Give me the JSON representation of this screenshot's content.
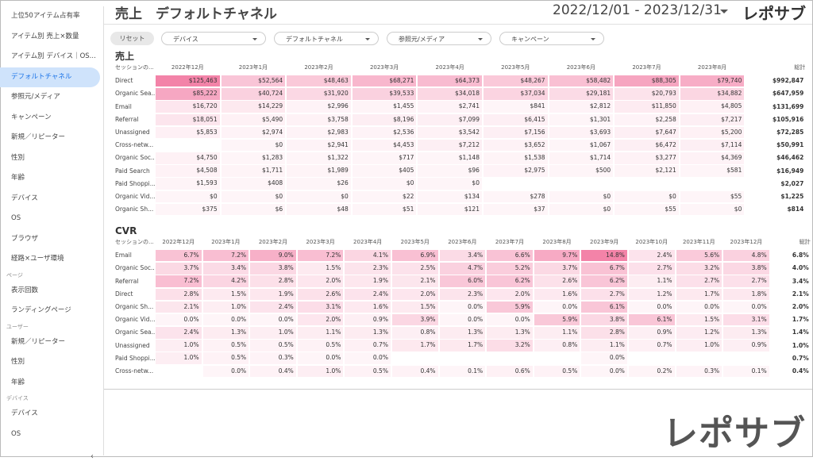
{
  "sidebar": [
    {
      "text": "上位50アイテム占有率"
    },
    {
      "text": "アイテム別 売上×数量"
    },
    {
      "text": "アイテム別 デバイス｜OS..."
    },
    {
      "text": "デフォルトチャネル",
      "active": true
    },
    {
      "text": "参照元/メディア"
    },
    {
      "text": "キャンペーン"
    },
    {
      "text": "新規／リピーター"
    },
    {
      "text": "性別"
    },
    {
      "text": "年齢"
    },
    {
      "text": "デバイス"
    },
    {
      "text": "OS"
    },
    {
      "text": "ブラウザ"
    },
    {
      "text": "経路×ユーザ環境"
    },
    {
      "section": "ページ"
    },
    {
      "text": "表示回数"
    },
    {
      "text": "ランディングページ"
    },
    {
      "section": "ユーザー"
    },
    {
      "text": "新規／リピーター"
    },
    {
      "text": "性別"
    },
    {
      "text": "年齢"
    },
    {
      "section": "デバイス"
    },
    {
      "text": "デバイス"
    },
    {
      "text": "OS"
    }
  ],
  "header": {
    "title": "売上　デフォルトチャネル",
    "date_range": "2022/12/01 - 2023/12/31",
    "logo": "レポサブ"
  },
  "filters": {
    "reset": "リセット",
    "dropdowns": [
      "デバイス",
      "デフォルトチャネル",
      "参照元/メディア",
      "キャンペーン"
    ]
  },
  "tables": [
    {
      "title": "売上",
      "row_header": "セッションの...",
      "total_header": "総計",
      "columns": [
        "2022年12月",
        "2023年1月",
        "2023年2月",
        "2023年3月",
        "2023年4月",
        "2023年5月",
        "2023年6月",
        "2023年7月",
        "2023年8月",
        null
      ],
      "rows": [
        {
          "label": "Direct",
          "cells": [
            "$125,463",
            "$52,564",
            "$48,463",
            "$68,271",
            "$64,373",
            "$48,267",
            "$58,482",
            "$88,305",
            "$79,740",
            null
          ],
          "total": "$992,847"
        },
        {
          "label": "Organic Sea...",
          "cells": [
            "$85,222",
            "$40,724",
            "$31,920",
            "$39,533",
            "$34,018",
            "$37,034",
            "$29,181",
            "$20,793",
            "$34,882",
            null
          ],
          "total": "$647,959"
        },
        {
          "label": "Email",
          "cells": [
            "$16,720",
            "$14,229",
            "$2,996",
            "$1,455",
            "$2,741",
            "$841",
            "$2,812",
            "$11,850",
            "$4,805",
            null
          ],
          "total": "$131,699"
        },
        {
          "label": "Referral",
          "cells": [
            "$18,051",
            "$5,490",
            "$3,758",
            "$8,196",
            "$7,099",
            "$6,415",
            "$1,301",
            "$2,258",
            "$7,217",
            null
          ],
          "total": "$105,916"
        },
        {
          "label": "Unassigned",
          "cells": [
            "$5,853",
            "$2,974",
            "$2,983",
            "$2,536",
            "$3,542",
            "$7,156",
            "$3,693",
            "$7,647",
            "$5,200",
            null
          ],
          "total": "$72,285"
        },
        {
          "label": "Cross-netw...",
          "cells": [
            null,
            "$0",
            "$2,941",
            "$4,453",
            "$7,212",
            "$3,652",
            "$1,067",
            "$6,472",
            "$7,114",
            null
          ],
          "total": "$50,991"
        },
        {
          "label": "Organic Soc...",
          "cells": [
            "$4,750",
            "$1,283",
            "$1,322",
            "$717",
            "$1,148",
            "$1,538",
            "$1,714",
            "$3,277",
            "$4,369",
            null
          ],
          "total": "$46,462"
        },
        {
          "label": "Paid Search",
          "cells": [
            "$4,508",
            "$1,711",
            "$1,989",
            "$405",
            "$96",
            "$2,975",
            "$500",
            "$2,121",
            "$581",
            null
          ],
          "total": "$16,949"
        },
        {
          "label": "Paid Shoppi...",
          "cells": [
            "$1,593",
            "$408",
            "$26",
            "$0",
            "$0",
            null,
            null,
            null,
            null,
            null
          ],
          "total": "$2,027"
        },
        {
          "label": "Organic Vid...",
          "cells": [
            "$0",
            "$0",
            "$0",
            "$22",
            "$134",
            "$278",
            "$0",
            "$0",
            "$55",
            null
          ],
          "total": "$1,225"
        },
        {
          "label": "Organic Sh...",
          "cells": [
            "$375",
            "$6",
            "$48",
            "$51",
            "$121",
            "$37",
            "$0",
            "$55",
            "$0",
            null
          ],
          "total": "$814"
        }
      ]
    },
    {
      "title": "CVR",
      "row_header": "セッションの...",
      "total_header": "総計",
      "columns": [
        "2022年12月",
        "2023年1月",
        "2023年2月",
        "2023年3月",
        "2023年4月",
        "2023年5月",
        "2023年6月",
        "2023年7月",
        "2023年8月",
        "2023年9月",
        "2023年10月",
        "2023年11月",
        "2023年12月"
      ],
      "rows": [
        {
          "label": "Email",
          "cells": [
            "6.7%",
            "7.2%",
            "9.0%",
            "7.2%",
            "4.1%",
            "6.9%",
            "3.4%",
            "6.6%",
            "9.7%",
            "14.8%",
            "2.4%",
            "5.6%",
            "4.8%"
          ],
          "total": "6.8%"
        },
        {
          "label": "Organic Soc...",
          "cells": [
            "3.7%",
            "3.4%",
            "3.8%",
            "1.5%",
            "2.3%",
            "2.5%",
            "4.7%",
            "5.2%",
            "3.7%",
            "6.7%",
            "2.7%",
            "3.2%",
            "3.8%"
          ],
          "total": "4.0%"
        },
        {
          "label": "Referral",
          "cells": [
            "7.2%",
            "4.2%",
            "2.8%",
            "2.0%",
            "1.9%",
            "2.1%",
            "6.0%",
            "6.2%",
            "2.6%",
            "6.2%",
            "1.1%",
            "2.7%",
            "2.7%"
          ],
          "total": "3.4%"
        },
        {
          "label": "Direct",
          "cells": [
            "2.8%",
            "1.5%",
            "1.9%",
            "2.6%",
            "2.4%",
            "2.0%",
            "2.3%",
            "2.0%",
            "1.6%",
            "2.7%",
            "1.2%",
            "1.7%",
            "1.8%"
          ],
          "total": "2.1%"
        },
        {
          "label": "Organic Sh...",
          "cells": [
            "2.1%",
            "1.0%",
            "2.4%",
            "3.1%",
            "1.6%",
            "1.5%",
            "0.0%",
            "5.9%",
            "0.0%",
            "6.1%",
            "0.0%",
            "0.0%",
            "0.0%"
          ],
          "total": "2.0%"
        },
        {
          "label": "Organic Vid...",
          "cells": [
            "0.0%",
            "0.0%",
            "0.0%",
            "2.0%",
            "0.9%",
            "3.9%",
            "0.0%",
            "0.0%",
            "5.9%",
            "3.8%",
            "6.1%",
            "1.5%",
            "3.1%"
          ],
          "total": "1.7%"
        },
        {
          "label": "Organic Sea...",
          "cells": [
            "2.4%",
            "1.3%",
            "1.0%",
            "1.1%",
            "1.3%",
            "0.8%",
            "1.3%",
            "1.3%",
            "1.1%",
            "2.8%",
            "0.9%",
            "1.2%",
            "1.3%"
          ],
          "total": "1.4%"
        },
        {
          "label": "Unassigned",
          "cells": [
            "1.0%",
            "0.5%",
            "0.5%",
            "0.5%",
            "0.7%",
            "1.7%",
            "1.7%",
            "3.2%",
            "0.8%",
            "1.1%",
            "0.7%",
            "1.0%",
            "0.9%"
          ],
          "total": "1.0%"
        },
        {
          "label": "Paid Shoppi...",
          "cells": [
            "1.0%",
            "0.5%",
            "0.3%",
            "0.0%",
            "0.0%",
            null,
            null,
            null,
            null,
            "0.0%",
            null,
            null,
            null
          ],
          "total": "0.7%"
        },
        {
          "label": "Cross-netw...",
          "cells": [
            null,
            "0.0%",
            "0.4%",
            "1.0%",
            "0.5%",
            "0.4%",
            "0.1%",
            "0.6%",
            "0.5%",
            "0.0%",
            "0.2%",
            "0.3%",
            "0.1%"
          ],
          "total": "0.4%"
        }
      ]
    }
  ]
}
